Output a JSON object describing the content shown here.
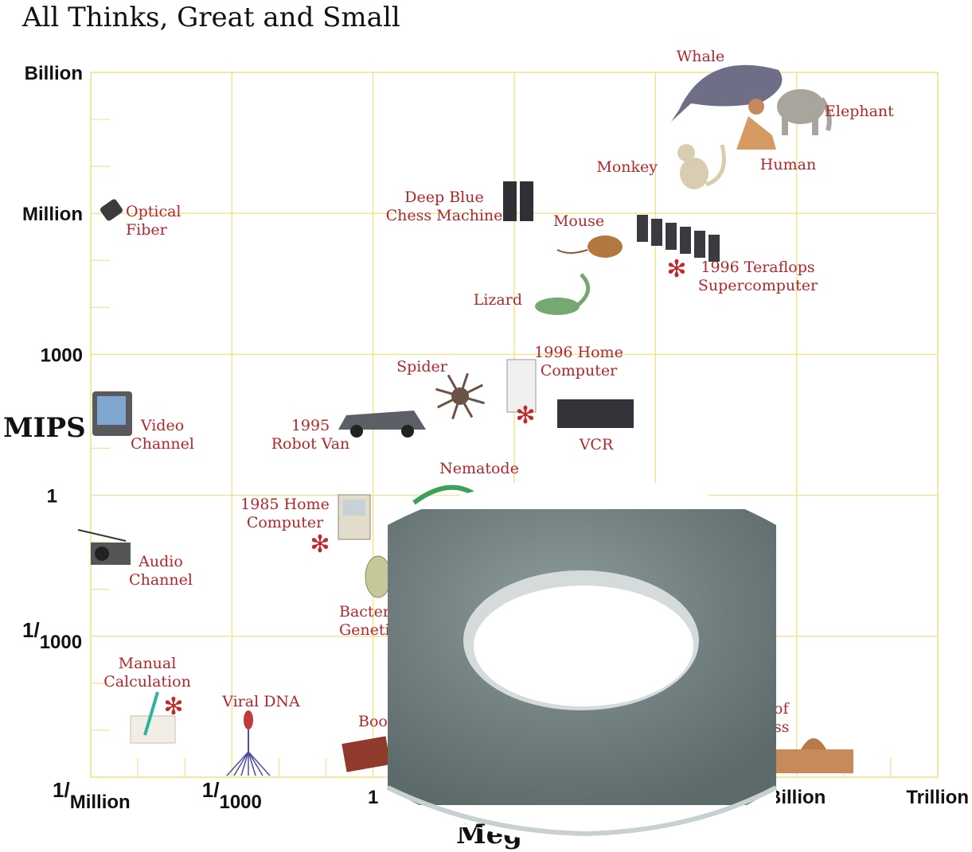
{
  "chart_data": {
    "type": "scatter",
    "title": "All Thinks, Great and Small",
    "ylabel": "MIPS",
    "xlabel": "Meg",
    "x_scale": "log",
    "y_scale": "log",
    "x_tick_labels": [
      {
        "base": "1",
        "sup": "/",
        "sub": "Million",
        "value": 1e-06
      },
      {
        "base": "1",
        "sup": "/",
        "sub": "1000",
        "value": 0.001
      },
      {
        "base": "1",
        "sup": "",
        "sub": "",
        "value": 1
      },
      {
        "base": "Billion",
        "sup": "",
        "sub": "",
        "value": 1000000000.0
      },
      {
        "base": "Trillion",
        "sup": "",
        "sub": "",
        "value": 1000000000000.0
      }
    ],
    "y_tick_labels": [
      {
        "base": "Billion",
        "sup": "",
        "sub": "",
        "value": 1000000000.0
      },
      {
        "base": "Million",
        "sup": "",
        "sub": "",
        "value": 1000000.0
      },
      {
        "base": "1000",
        "sup": "",
        "sub": "",
        "value": 1000.0
      },
      {
        "base": "1",
        "sup": "",
        "sub": "",
        "value": 1
      },
      {
        "base": "1",
        "sup": "/",
        "sub": "1000",
        "value": 0.001
      }
    ],
    "xlim": [
      1e-06,
      1000000000000.0
    ],
    "ylim": [
      1e-06,
      1000000000.0
    ],
    "grid": true,
    "points": [
      {
        "label": [
          "Whale"
        ],
        "x": 3000000000.0,
        "y": 400000000.0,
        "icon": "whale-icon",
        "star": false
      },
      {
        "label": [
          "Elephant"
        ],
        "x": 200000000000.0,
        "y": 100000000.0,
        "icon": "elephant-icon",
        "star": false
      },
      {
        "label": [
          "Human"
        ],
        "x": 20000000000.0,
        "y": 50000000.0,
        "icon": "human-icon",
        "star": false
      },
      {
        "label": [
          "Monkey"
        ],
        "x": 500000000.0,
        "y": 8000000.0,
        "icon": "monkey-icon",
        "star": false
      },
      {
        "label": [
          "Optical",
          "Fiber"
        ],
        "x": 2e-06,
        "y": 1000000.0,
        "icon": "optical-fiber-icon",
        "star": false
      },
      {
        "label": [
          "Deep Blue",
          "Chess Machine"
        ],
        "x": 1000000.0,
        "y": 3000000.0,
        "icon": "deep-blue-icon",
        "star": false
      },
      {
        "label": [
          "Mouse"
        ],
        "x": 3000000.0,
        "y": 100000.0,
        "icon": "mouse-icon",
        "star": false
      },
      {
        "label": [
          "1996 Teraflops",
          "Supercomputer"
        ],
        "x": 1000000000.0,
        "y": 100000.0,
        "icon": "supercomputer-icon",
        "star": true
      },
      {
        "label": [
          "Lizard"
        ],
        "x": 10000000.0,
        "y": 10000.0,
        "icon": "lizard-icon",
        "star": false
      },
      {
        "label": [
          "1996 Home",
          "Computer"
        ],
        "x": 1000000.0,
        "y": 150,
        "icon": "home-computer-1996-icon",
        "star": true
      },
      {
        "label": [
          "Spider"
        ],
        "x": 100000.0,
        "y": 80,
        "icon": "spider-icon",
        "star": false
      },
      {
        "label": [
          "Video",
          "Channel"
        ],
        "x": 1e-06,
        "y": 40,
        "icon": "video-channel-icon",
        "star": false
      },
      {
        "label": [
          "1995",
          "Robot Van"
        ],
        "x": 1000,
        "y": 15,
        "icon": "robot-van-icon",
        "star": false
      },
      {
        "label": [
          "VCR"
        ],
        "x": 30000000.0,
        "y": 40,
        "icon": "vcr-icon",
        "star": false
      },
      {
        "label": [
          "Nematode"
        ],
        "x": 30000.0,
        "y": 1,
        "icon": "nematode-icon",
        "star": false
      },
      {
        "label": [
          "1985 Home",
          "Computer"
        ],
        "x": 30,
        "y": 0.1,
        "icon": "home-computer-1985-icon",
        "star": true
      },
      {
        "label": [
          "Audio",
          "Channel"
        ],
        "x": 1e-06,
        "y": 0.03,
        "icon": "audio-channel-icon",
        "star": false
      },
      {
        "label": [
          "Bacteri",
          "Geneti"
        ],
        "x": 300,
        "y": 0.005,
        "icon": "bacteria-icon",
        "star": false
      },
      {
        "label": [
          "Manual",
          "Calculation"
        ],
        "x": 1e-05,
        "y": 1e-05,
        "icon": "manual-calculation-icon",
        "star": true
      },
      {
        "label": [
          "Viral DNA"
        ],
        "x": 0.001,
        "y": 1e-05,
        "icon": "viral-dna-icon",
        "star": false
      },
      {
        "label": [
          "Boo"
        ],
        "x": 1,
        "y": 3e-06,
        "icon": "book-icon",
        "star": false
      },
      {
        "label": [
          "of",
          "ss"
        ],
        "x": 30000000000.0,
        "y": 3e-06,
        "icon": "library-of-congress-icon",
        "star": false
      }
    ]
  },
  "overlay": {
    "icon": "metal-washer-photo"
  },
  "colors": {
    "grid": "#f2e28c",
    "label": "#b3262a",
    "star": "#c0282b"
  }
}
